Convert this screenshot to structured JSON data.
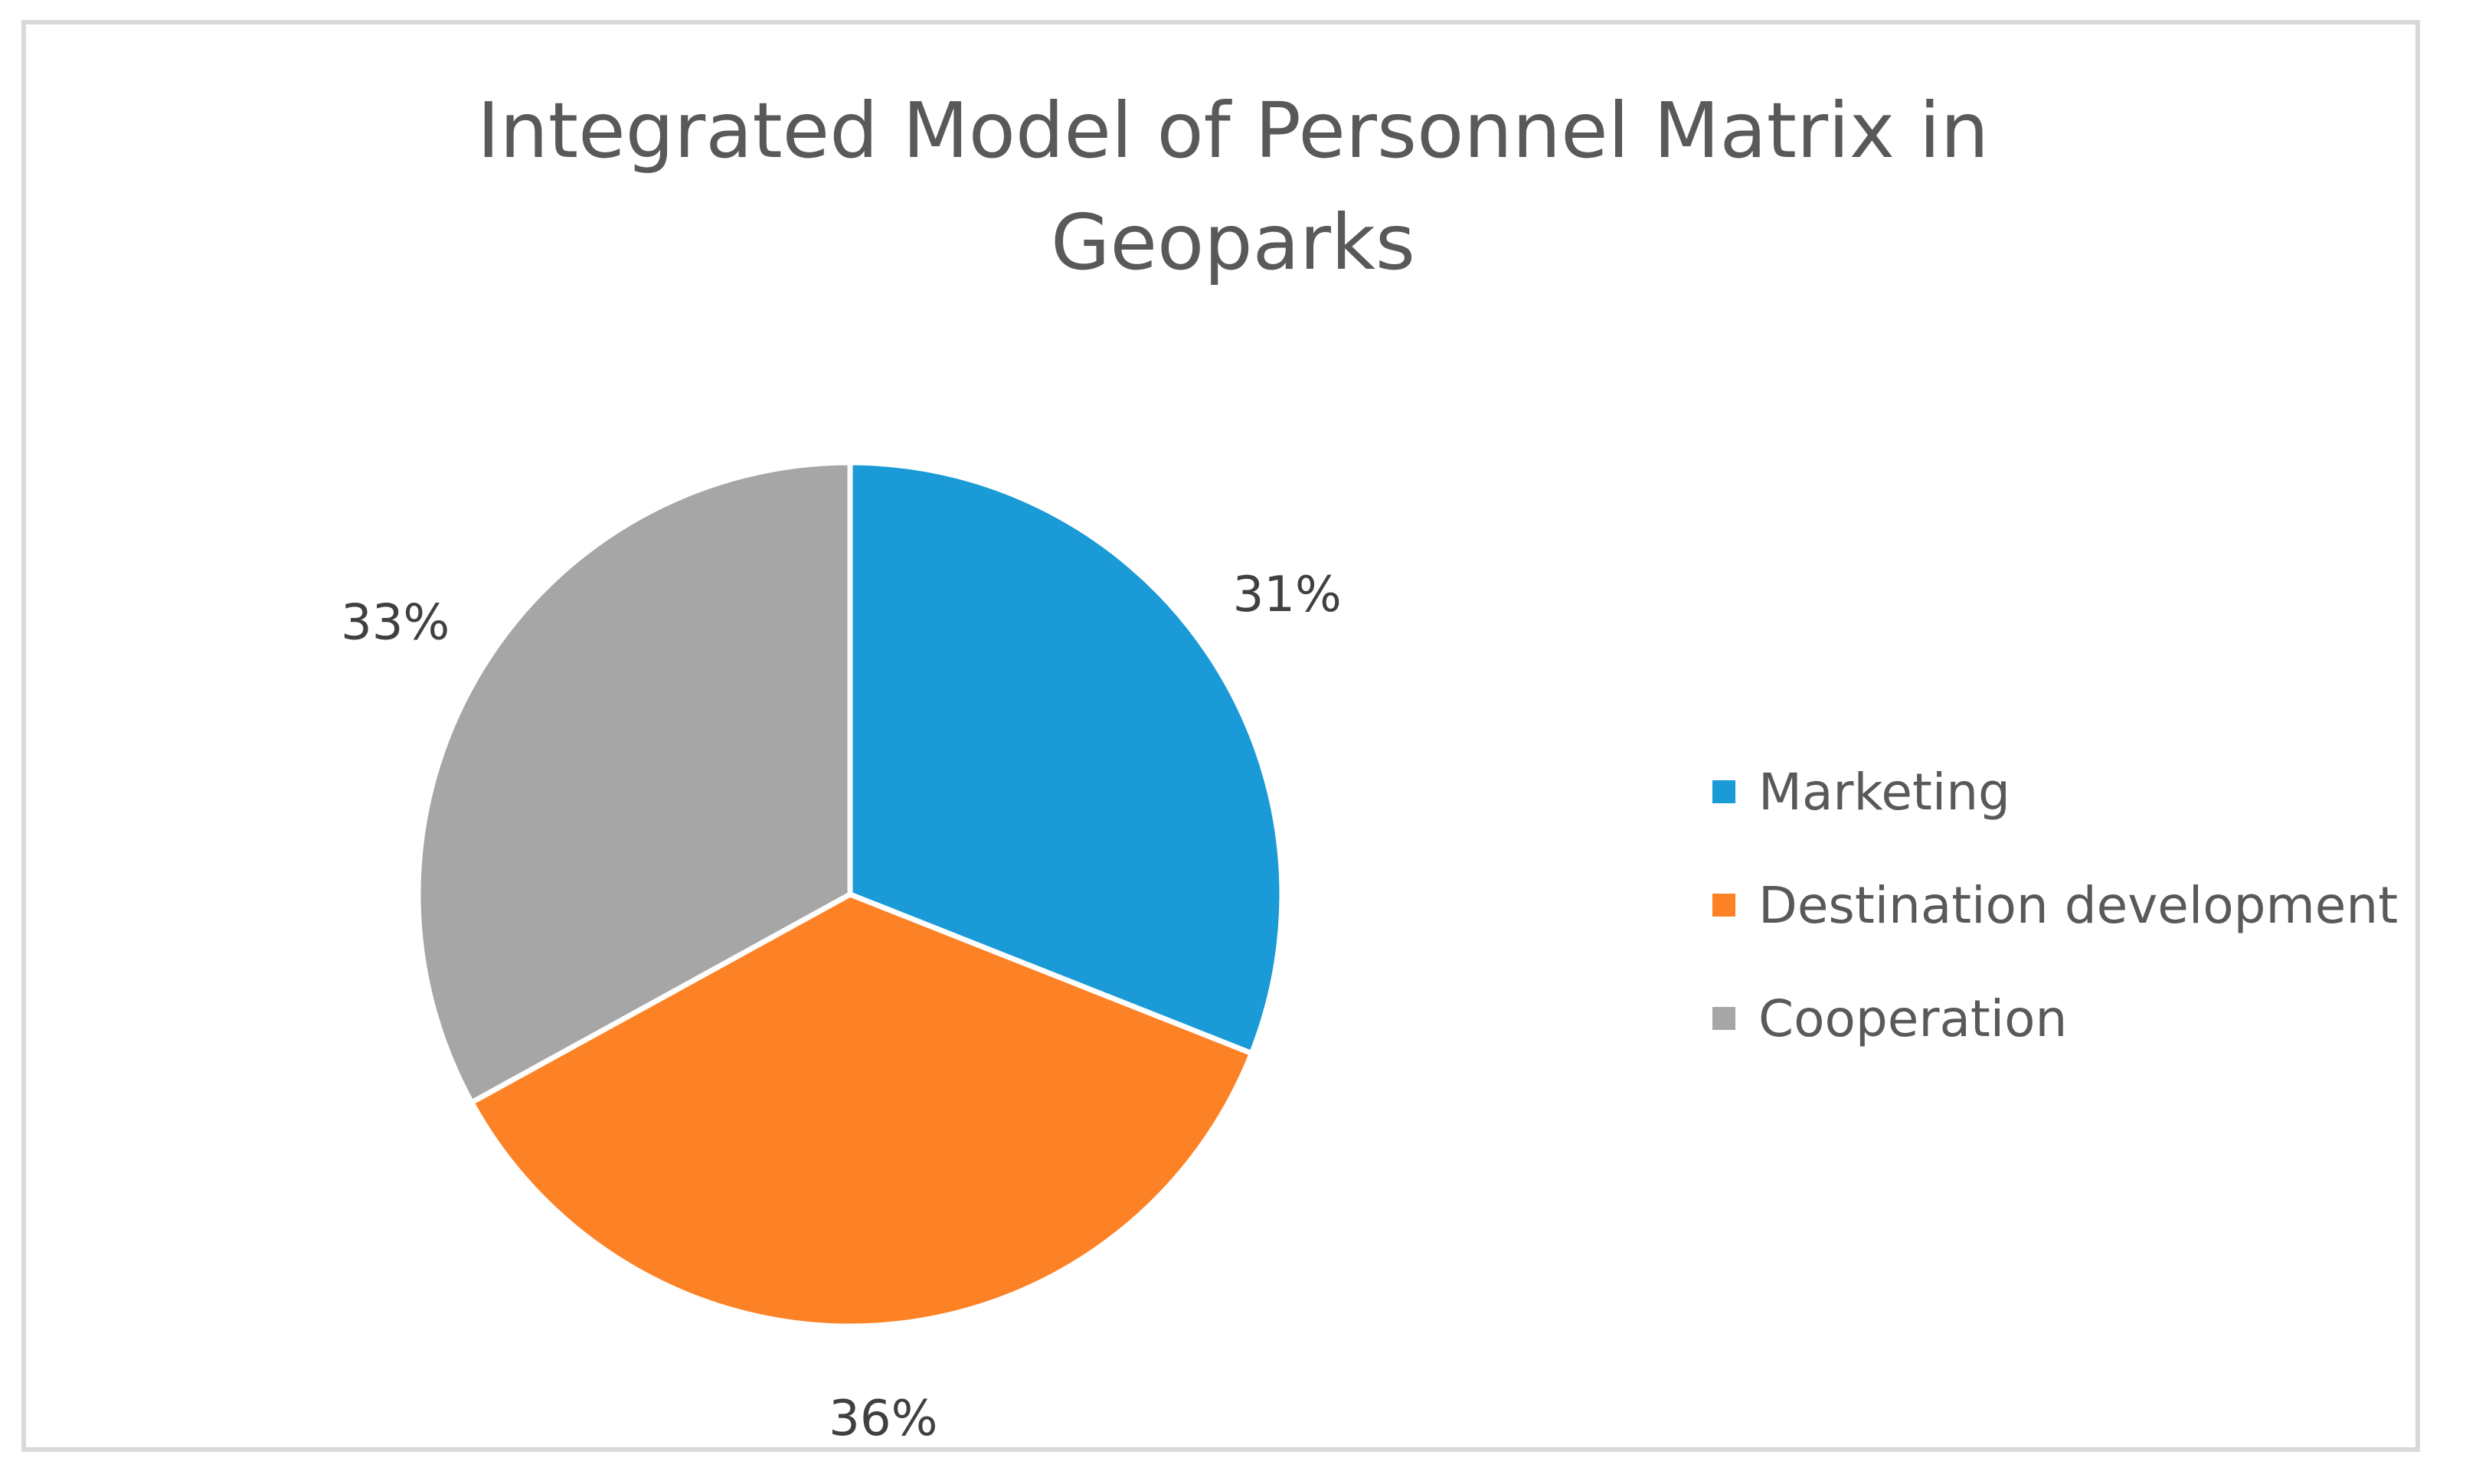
{
  "chart_data": {
    "type": "pie",
    "title_lines": [
      "Integrated Model of Personnel Matrix in",
      "Geoparks"
    ],
    "slices": [
      {
        "label": "Marketing",
        "value": 31,
        "data_label": "31%",
        "color": "#1a9ad6"
      },
      {
        "label": "Destination development",
        "value": 36,
        "data_label": "36%",
        "color": "#fd8125"
      },
      {
        "label": "Cooperation",
        "value": 33,
        "data_label": "33%",
        "color": "#a6a6a6"
      }
    ],
    "legend_position": "right",
    "start_angle": "12 o'clock, clockwise"
  }
}
